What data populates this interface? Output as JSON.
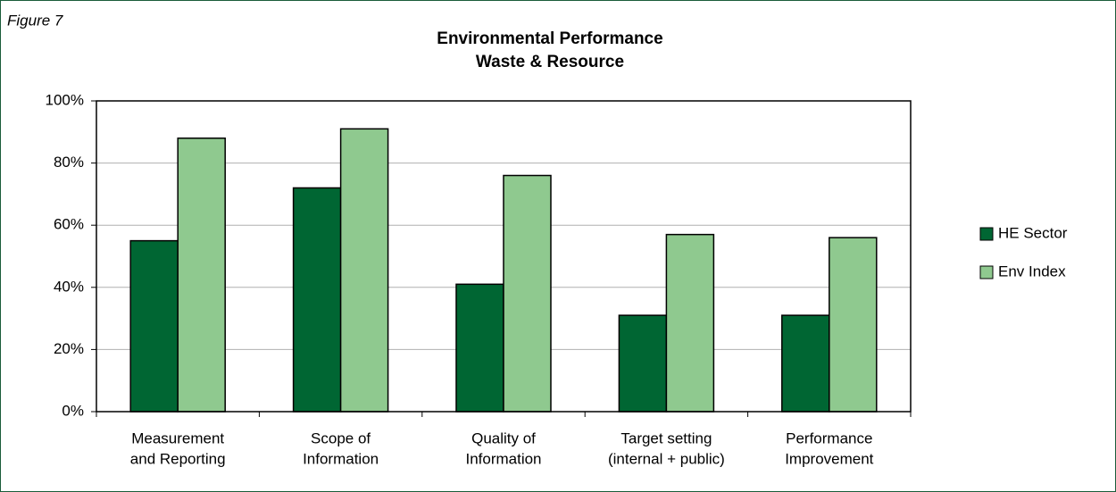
{
  "label": "Figure 7",
  "chart_data": {
    "type": "bar",
    "title": "Environmental Performance",
    "subtitle": "Waste & Resource",
    "categories": [
      [
        "Measurement",
        "and Reporting"
      ],
      [
        "Scope of",
        "Information"
      ],
      [
        "Quality of",
        "Information"
      ],
      [
        "Target setting",
        "(internal + public)"
      ],
      [
        "Performance",
        "Improvement"
      ]
    ],
    "series": [
      {
        "name": "HE Sector",
        "color": "#006633",
        "values": [
          55,
          72,
          41,
          31,
          31
        ]
      },
      {
        "name": "Env Index",
        "color": "#8fc98f",
        "values": [
          88,
          91,
          76,
          57,
          56
        ]
      }
    ],
    "ylim": [
      0,
      100
    ],
    "yticks": [
      {
        "value": 0,
        "label": "0%"
      },
      {
        "value": 20,
        "label": "20%"
      },
      {
        "value": 40,
        "label": "40%"
      },
      {
        "value": 60,
        "label": "60%"
      },
      {
        "value": 80,
        "label": "80%"
      },
      {
        "value": 100,
        "label": "100%"
      }
    ],
    "grid": true,
    "legend": "right"
  }
}
